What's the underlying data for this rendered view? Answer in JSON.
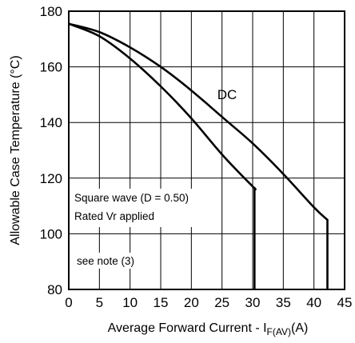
{
  "chart_data": {
    "type": "line",
    "title": "",
    "xlabel": "Average Forward Current - I",
    "xlabel_sub": "F(AV)",
    "xlabel_unit": "(A)",
    "ylabel": "Allowable Case Temperature (°C)",
    "xlim": [
      0,
      45
    ],
    "ylim": [
      80,
      180
    ],
    "x_ticks": [
      0,
      5,
      10,
      15,
      20,
      25,
      30,
      35,
      40,
      45
    ],
    "y_ticks": [
      80,
      100,
      120,
      140,
      160,
      180
    ],
    "grid": true,
    "series": [
      {
        "name": "DC",
        "points": [
          [
            0,
            175.5
          ],
          [
            5,
            172.5
          ],
          [
            10,
            167
          ],
          [
            15,
            160
          ],
          [
            20,
            151.5
          ],
          [
            25,
            142
          ],
          [
            30,
            132.5
          ],
          [
            35,
            121.5
          ],
          [
            40,
            109.5
          ],
          [
            42.2,
            105
          ],
          [
            42.2,
            80
          ]
        ]
      },
      {
        "name": "",
        "points": [
          [
            0,
            175.5
          ],
          [
            5,
            171
          ],
          [
            10,
            163
          ],
          [
            15,
            153
          ],
          [
            20,
            141.5
          ],
          [
            25,
            128.5
          ],
          [
            30,
            117
          ],
          [
            30.3,
            116.5
          ],
          [
            30.3,
            80
          ]
        ]
      }
    ],
    "annotations": [
      "Square wave (D = 0.50)",
      "Rated Vr  applied",
      "see note (3)"
    ]
  }
}
